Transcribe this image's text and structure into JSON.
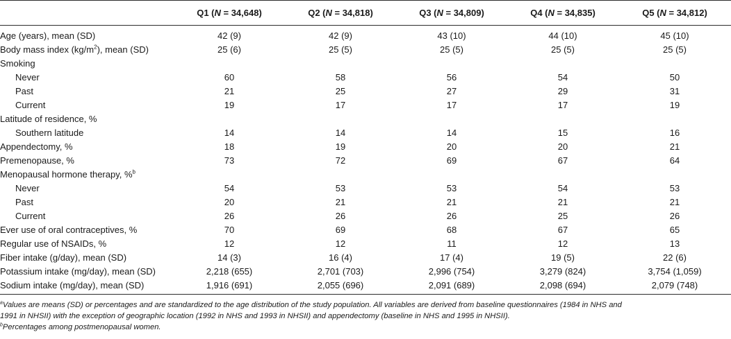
{
  "table": {
    "columns": [
      {
        "label": "",
        "n_label": "",
        "n_value": ""
      },
      {
        "label": "Q1 (",
        "n_label": "N",
        "n_value": " = 34,648)"
      },
      {
        "label": "Q2 (",
        "n_label": "N",
        "n_value": " = 34,818)"
      },
      {
        "label": "Q3 (",
        "n_label": "N",
        "n_value": " = 34,809)"
      },
      {
        "label": "Q4 (",
        "n_label": "N",
        "n_value": " = 34,835)"
      },
      {
        "label": "Q5 (",
        "n_label": "N",
        "n_value": " = 34,812)"
      }
    ],
    "rows": [
      {
        "label": "Age (years), mean (SD)",
        "values": [
          "42 (9)",
          "42 (9)",
          "43 (10)",
          "44 (10)",
          "45 (10)"
        ]
      },
      {
        "label": "Body mass index (kg/m",
        "label_sup": "2",
        "label_tail": "), mean (SD)",
        "values": [
          "25 (6)",
          "25 (5)",
          "25 (5)",
          "25 (5)",
          "25 (5)"
        ]
      },
      {
        "label": "Smoking",
        "values": [
          "",
          "",
          "",
          "",
          ""
        ]
      },
      {
        "label": "Never",
        "indent": true,
        "values": [
          "60",
          "58",
          "56",
          "54",
          "50"
        ]
      },
      {
        "label": "Past",
        "indent": true,
        "values": [
          "21",
          "25",
          "27",
          "29",
          "31"
        ]
      },
      {
        "label": "Current",
        "indent": true,
        "values": [
          "19",
          "17",
          "17",
          "17",
          "19"
        ]
      },
      {
        "label": "Latitude of residence, %",
        "values": [
          "",
          "",
          "",
          "",
          ""
        ]
      },
      {
        "label": "Southern latitude",
        "indent": true,
        "values": [
          "14",
          "14",
          "14",
          "15",
          "16"
        ]
      },
      {
        "label": "Appendectomy, %",
        "values": [
          "18",
          "19",
          "20",
          "20",
          "21"
        ]
      },
      {
        "label": "Premenopause, %",
        "values": [
          "73",
          "72",
          "69",
          "67",
          "64"
        ]
      },
      {
        "label": "Menopausal hormone therapy, %",
        "label_sup": "b",
        "values": [
          "",
          "",
          "",
          "",
          ""
        ]
      },
      {
        "label": "Never",
        "indent": true,
        "values": [
          "54",
          "53",
          "53",
          "54",
          "53"
        ]
      },
      {
        "label": "Past",
        "indent": true,
        "values": [
          "20",
          "21",
          "21",
          "21",
          "21"
        ]
      },
      {
        "label": "Current",
        "indent": true,
        "values": [
          "26",
          "26",
          "26",
          "25",
          "26"
        ]
      },
      {
        "label": "Ever use of oral contraceptives, %",
        "values": [
          "70",
          "69",
          "68",
          "67",
          "65"
        ]
      },
      {
        "label": "Regular use of NSAIDs, %",
        "values": [
          "12",
          "12",
          "11",
          "12",
          "13"
        ]
      },
      {
        "label": "Fiber intake (g/day), mean (SD)",
        "values": [
          "14 (3)",
          "16 (4)",
          "17 (4)",
          "19 (5)",
          "22 (6)"
        ]
      },
      {
        "label": "Potassium intake (mg/day), mean (SD)",
        "values": [
          "2,218 (655)",
          "2,701 (703)",
          "2,996 (754)",
          "3,279 (824)",
          "3,754 (1,059)"
        ]
      },
      {
        "label": "Sodium intake (mg/day), mean (SD)",
        "values": [
          "1,916 (691)",
          "2,055 (696)",
          "2,091 (689)",
          "2,098 (694)",
          "2,079 (748)"
        ]
      }
    ]
  },
  "footnotes": [
    {
      "marker": "a",
      "text": "Values are means (SD) or percentages and are standardized to the age distribution of the study population. All variables are derived from baseline questionnaires (1984 in NHS and"
    },
    {
      "marker": "",
      "text": "1991 in NHSII) with the exception of geographic location (1992 in NHS and 1993 in NHSII) and appendectomy (baseline in NHS and 1995 in NHSII)."
    },
    {
      "marker": "b",
      "text": "Percentages among postmenopausal women."
    }
  ]
}
